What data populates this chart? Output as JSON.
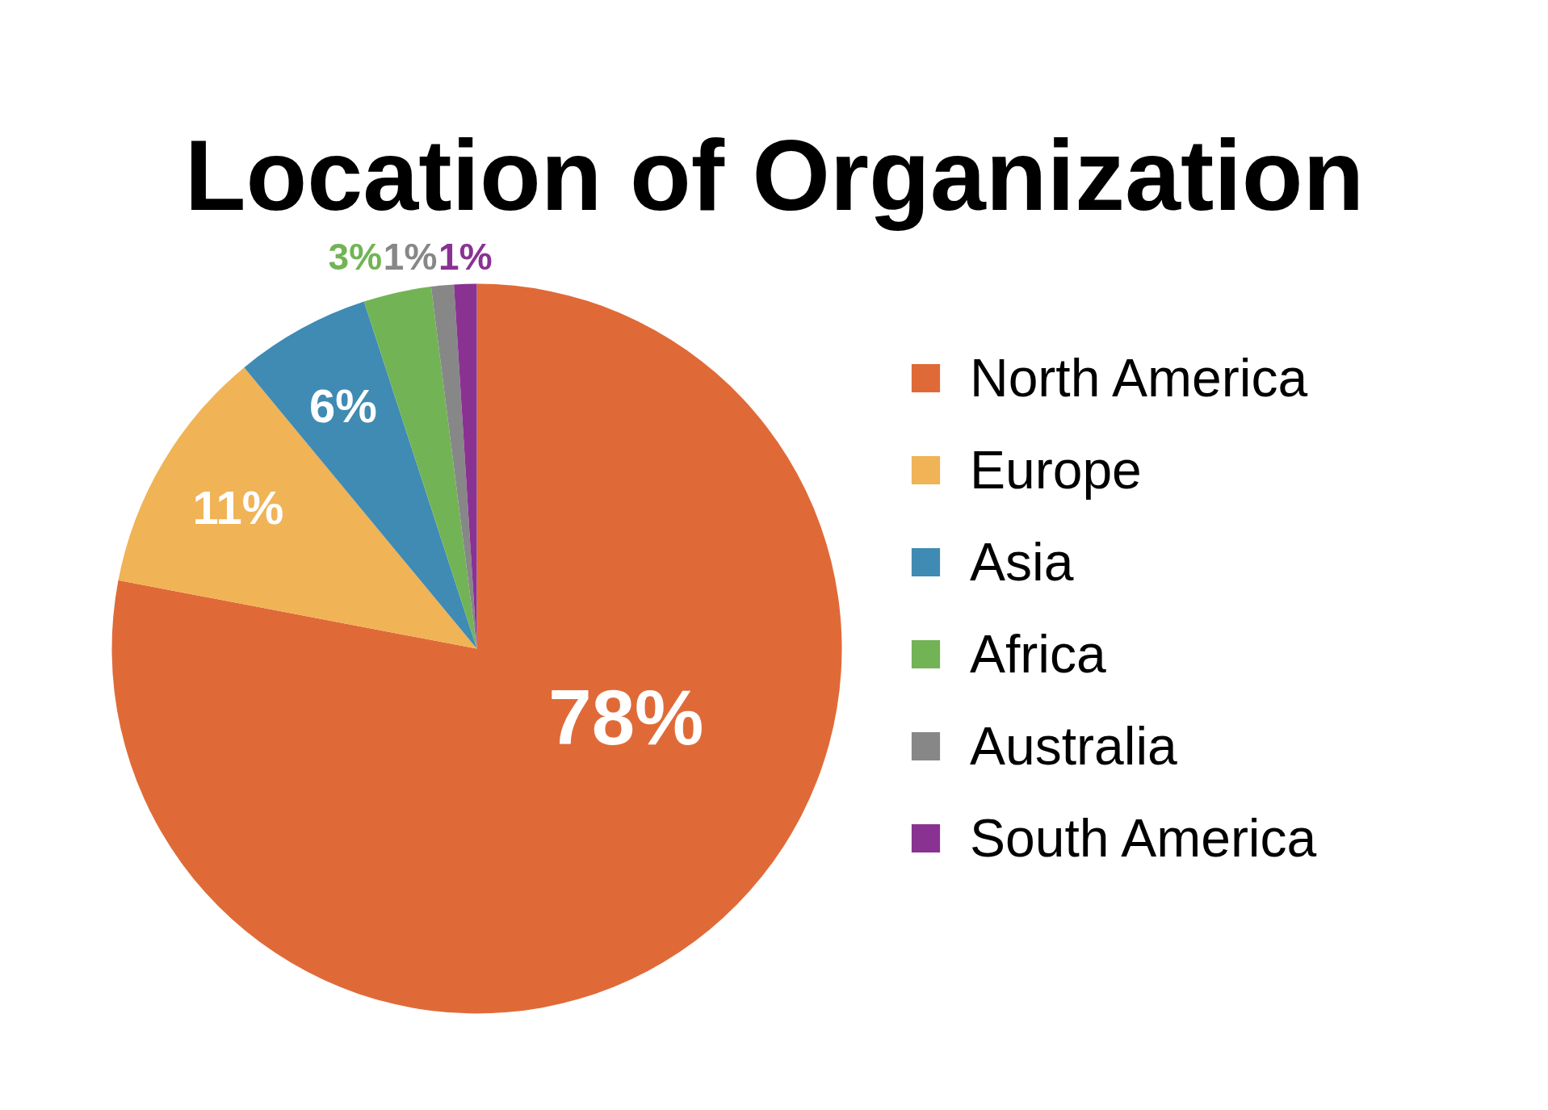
{
  "chart_data": {
    "type": "pie",
    "title": "Location of Organization",
    "categories": [
      "North America",
      "Europe",
      "Asia",
      "Africa",
      "Australia",
      "South America"
    ],
    "values": [
      78,
      11,
      6,
      3,
      1,
      1
    ],
    "colors": [
      "#e06a37",
      "#f0b356",
      "#3f8bb3",
      "#72b455",
      "#878787",
      "#8a3292"
    ],
    "value_labels": [
      "78%",
      "11%",
      "6%",
      "3%",
      "1%",
      "1%"
    ],
    "legend": "right"
  }
}
